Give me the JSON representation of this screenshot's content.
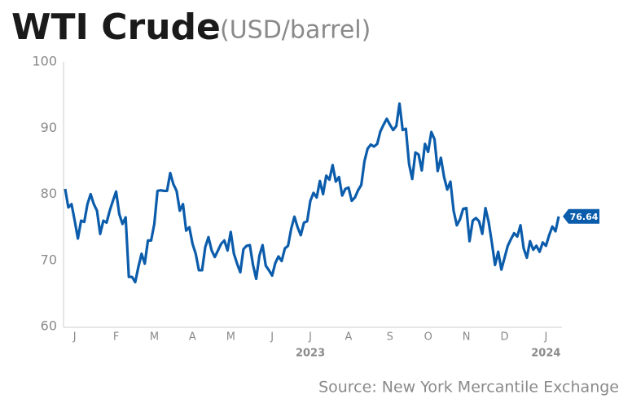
{
  "chart_data": {
    "type": "line",
    "title": "WTI Crude",
    "subtitle": "(USD/barrel)",
    "source": "Source: New York Mercantile Exchange",
    "categories": [
      null,
      null,
      null,
      "J",
      null,
      null,
      null,
      null,
      null,
      null,
      null,
      null,
      null,
      null,
      null,
      null,
      "F",
      null,
      null,
      null,
      null,
      null,
      null,
      null,
      null,
      null,
      null,
      null,
      "M",
      null,
      null,
      null,
      null,
      null,
      null,
      null,
      null,
      null,
      null,
      null,
      "A",
      null,
      null,
      null,
      null,
      null,
      null,
      null,
      null,
      null,
      null,
      null,
      "M",
      null,
      null,
      null,
      null,
      null,
      null,
      null,
      null,
      null,
      null,
      null,
      null,
      "J",
      null,
      null,
      null,
      null,
      null,
      null,
      null,
      null,
      null,
      null,
      null,
      "J",
      null,
      null,
      null,
      null,
      null,
      null,
      null,
      null,
      null,
      null,
      null,
      "A",
      null,
      null,
      null,
      null,
      null,
      null,
      null,
      null,
      null,
      null,
      null,
      null,
      "S",
      null,
      null,
      null,
      null,
      null,
      null,
      null,
      null,
      null,
      null,
      null,
      "O",
      null,
      null,
      null,
      null,
      null,
      null,
      null,
      null,
      null,
      null,
      null,
      "N",
      null,
      null,
      null,
      null,
      null,
      null,
      null,
      null,
      null,
      null,
      null,
      "D",
      null,
      null,
      null,
      null,
      null,
      null,
      null,
      null,
      null,
      null,
      null,
      null,
      "J",
      null,
      null,
      null,
      null
    ],
    "year_labels": [
      {
        "label": "2023",
        "category": 77
      },
      {
        "label": "2024",
        "category": 151
      }
    ],
    "series": [
      {
        "name": "WTI Crude",
        "color": "#0b5cab",
        "values": [
          80.8,
          78,
          78.5,
          76,
          73.3,
          76,
          75.8,
          78.5,
          80,
          78.5,
          77.5,
          74,
          76,
          75.7,
          77.5,
          79,
          80.4,
          77,
          75.5,
          76.5,
          67.5,
          67.5,
          66.7,
          69,
          71,
          69.5,
          73,
          73,
          75.5,
          80.5,
          80.6,
          80.5,
          80.5,
          83.2,
          81.5,
          80.5,
          77.5,
          78.5,
          74.5,
          75,
          72.5,
          71,
          68.5,
          68.5,
          72,
          73.5,
          71.5,
          70.5,
          71.5,
          72.5,
          73,
          71.5,
          74.3,
          71,
          69.5,
          68.2,
          71.7,
          72.2,
          72.3,
          69.3,
          67.2,
          70.7,
          72.3,
          69.2,
          68.5,
          67.7,
          69.6,
          70.6,
          69.9,
          71.8,
          72.2,
          74.8,
          76.6,
          75,
          73.8,
          75.7,
          75.9,
          79,
          80.2,
          79.5,
          82,
          80,
          82.8,
          82.2,
          84.4,
          81.9,
          82.6,
          79.8,
          80.8,
          81,
          79,
          79.5,
          80.6,
          81.4,
          85,
          86.9,
          87.5,
          87.2,
          87.6,
          89.5,
          90.5,
          91.4,
          90.5,
          89.7,
          90.3,
          93.7,
          89.7,
          89.9,
          84.6,
          82.3,
          86.3,
          86,
          83.6,
          87.6,
          86.4,
          89.4,
          88.3,
          83.5,
          85.5,
          82.6,
          80.7,
          81.9,
          77.5,
          75.3,
          76.2,
          77.8,
          77.9,
          72.9,
          76,
          76.4,
          75.9,
          74,
          77.9,
          75.8,
          72.7,
          69.3,
          71.3,
          68.6,
          70.4,
          72.2,
          73.2,
          74.1,
          73.6,
          75.3,
          71.8,
          70.4,
          72.9,
          71.6,
          72.2,
          71.3,
          72.7,
          72.2,
          73.8,
          75.1,
          74.4,
          76.64
        ]
      }
    ],
    "ylim": [
      60,
      100
    ],
    "yticks": [
      60,
      70,
      80,
      90,
      100
    ],
    "grid": false
  }
}
